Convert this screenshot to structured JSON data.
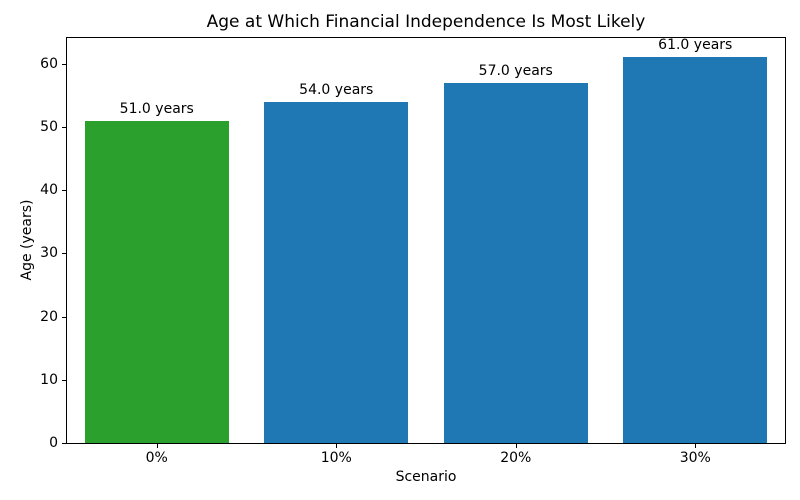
{
  "chart_data": {
    "type": "bar",
    "title": "Age at Which Financial Independence Is Most Likely",
    "xlabel": "Scenario",
    "ylabel": "Age (years)",
    "categories": [
      "0%",
      "10%",
      "20%",
      "30%"
    ],
    "values": [
      51.0,
      54.0,
      57.0,
      61.0
    ],
    "bar_labels": [
      "51.0 years",
      "54.0 years",
      "57.0 years",
      "61.0 years"
    ],
    "bar_colors": [
      "#2ca02c",
      "#1f77b4",
      "#1f77b4",
      "#1f77b4"
    ],
    "ylim": [
      0,
      64.05
    ],
    "yticks": [
      0,
      10,
      20,
      30,
      40,
      50,
      60
    ],
    "grid": false,
    "legend": "none",
    "background_color": "#ffffff",
    "spine_color": "#000000"
  }
}
